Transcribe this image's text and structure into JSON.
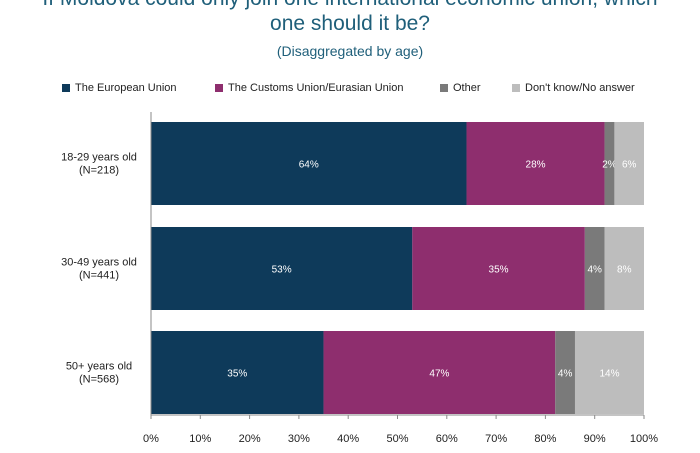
{
  "title_lines": [
    "If Moldova could only join one international economic union, which",
    "one should it be?"
  ],
  "subtitle": "(Disaggregated by age)",
  "chart_data": {
    "type": "bar",
    "orientation": "horizontal",
    "stacked": true,
    "categories": [
      [
        "18-29 years old",
        "(N=218)"
      ],
      [
        "30-49 years old",
        "(N=441)"
      ],
      [
        "50+ years old",
        "(N=568)"
      ]
    ],
    "series": [
      {
        "name": "The European Union",
        "color": "#0e3a5a",
        "values": [
          64,
          53,
          35
        ]
      },
      {
        "name": "The Customs Union/Eurasian Union",
        "color": "#8e2e6e",
        "values": [
          28,
          35,
          47
        ]
      },
      {
        "name": "Other",
        "color": "#7a7a7a",
        "values": [
          2,
          4,
          4
        ]
      },
      {
        "name": "Don't know/No answer",
        "color": "#bdbdbd",
        "values": [
          6,
          8,
          14
        ]
      }
    ],
    "data_labels": [
      [
        "64%",
        "28%",
        "2%",
        "6%"
      ],
      [
        "53%",
        "35%",
        "4%",
        "8%"
      ],
      [
        "35%",
        "47%",
        "4%",
        "14%"
      ]
    ],
    "x_ticks": [
      "0%",
      "10%",
      "20%",
      "30%",
      "40%",
      "50%",
      "60%",
      "70%",
      "80%",
      "90%",
      "100%"
    ],
    "xlim": [
      0,
      100
    ],
    "legend_position": "top",
    "grid": false
  }
}
